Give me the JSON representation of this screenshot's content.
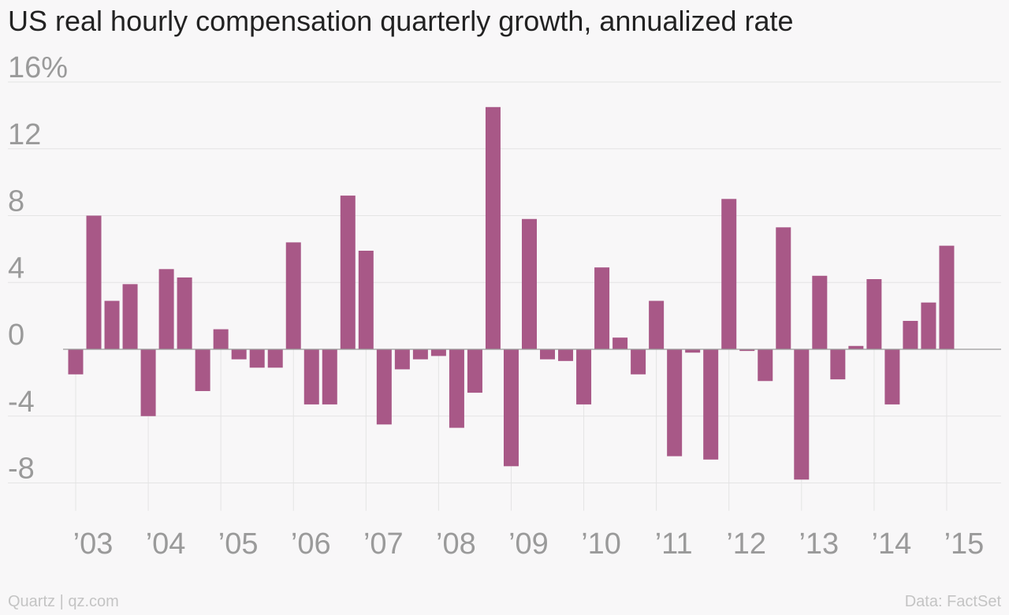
{
  "title": "US real hourly compensation quarterly growth, annualized rate",
  "footer": {
    "source_left": "Quartz | qz.com",
    "source_right": "Data: FactSet"
  },
  "colors": {
    "bar": "#a85887",
    "gridline": "#e4e4e4",
    "zero_line": "#9a9a9a",
    "tick_text": "#9a9a9a"
  },
  "chart_data": {
    "type": "bar",
    "title": "US real hourly compensation quarterly growth, annualized rate",
    "xlabel": "",
    "ylabel": "",
    "ylim": [
      -9,
      16
    ],
    "grid": true,
    "y_ticks": [
      {
        "value": 16,
        "label": "16%"
      },
      {
        "value": 12,
        "label": "12"
      },
      {
        "value": 8,
        "label": "8"
      },
      {
        "value": 4,
        "label": "4"
      },
      {
        "value": 0,
        "label": "0"
      },
      {
        "value": -4,
        "label": "-4"
      },
      {
        "value": -8,
        "label": "-8"
      }
    ],
    "x_ticks": [
      {
        "label": "’03",
        "first_quarter_index": 0
      },
      {
        "label": "’04",
        "first_quarter_index": 4
      },
      {
        "label": "’05",
        "first_quarter_index": 8
      },
      {
        "label": "’06",
        "first_quarter_index": 12
      },
      {
        "label": "’07",
        "first_quarter_index": 16
      },
      {
        "label": "’08",
        "first_quarter_index": 20
      },
      {
        "label": "’09",
        "first_quarter_index": 24
      },
      {
        "label": "’10",
        "first_quarter_index": 28
      },
      {
        "label": "’11",
        "first_quarter_index": 32
      },
      {
        "label": "’12",
        "first_quarter_index": 36
      },
      {
        "label": "’13",
        "first_quarter_index": 40
      },
      {
        "label": "’14",
        "first_quarter_index": 44
      },
      {
        "label": "’15",
        "first_quarter_index": 48
      }
    ],
    "categories": [
      "2003 Q1",
      "2003 Q2",
      "2003 Q3",
      "2003 Q4",
      "2004 Q1",
      "2004 Q2",
      "2004 Q3",
      "2004 Q4",
      "2005 Q1",
      "2005 Q2",
      "2005 Q3",
      "2005 Q4",
      "2006 Q1",
      "2006 Q2",
      "2006 Q3",
      "2006 Q4",
      "2007 Q1",
      "2007 Q2",
      "2007 Q3",
      "2007 Q4",
      "2008 Q1",
      "2008 Q2",
      "2008 Q3",
      "2008 Q4",
      "2009 Q1",
      "2009 Q2",
      "2009 Q3",
      "2009 Q4",
      "2010 Q1",
      "2010 Q2",
      "2010 Q3",
      "2010 Q4",
      "2011 Q1",
      "2011 Q2",
      "2011 Q3",
      "2011 Q4",
      "2012 Q1",
      "2012 Q2",
      "2012 Q3",
      "2012 Q4",
      "2013 Q1",
      "2013 Q2",
      "2013 Q3",
      "2013 Q4",
      "2014 Q1",
      "2014 Q2",
      "2014 Q3",
      "2014 Q4",
      "2015 Q1"
    ],
    "values": [
      -1.5,
      8.0,
      2.9,
      3.9,
      -4.0,
      4.8,
      4.3,
      -2.5,
      1.2,
      -0.6,
      -1.1,
      -1.1,
      6.4,
      -3.3,
      -3.3,
      9.2,
      5.9,
      -4.5,
      -1.2,
      -0.6,
      -0.4,
      -4.7,
      -2.6,
      14.5,
      -7.0,
      7.8,
      -0.6,
      -0.7,
      -3.3,
      4.9,
      0.7,
      -1.5,
      2.9,
      -6.4,
      -0.2,
      -6.6,
      9.0,
      -0.1,
      -1.9,
      7.3,
      -7.8,
      4.4,
      -1.8,
      0.2,
      4.2,
      -3.3,
      1.7,
      2.8,
      6.2
    ]
  }
}
